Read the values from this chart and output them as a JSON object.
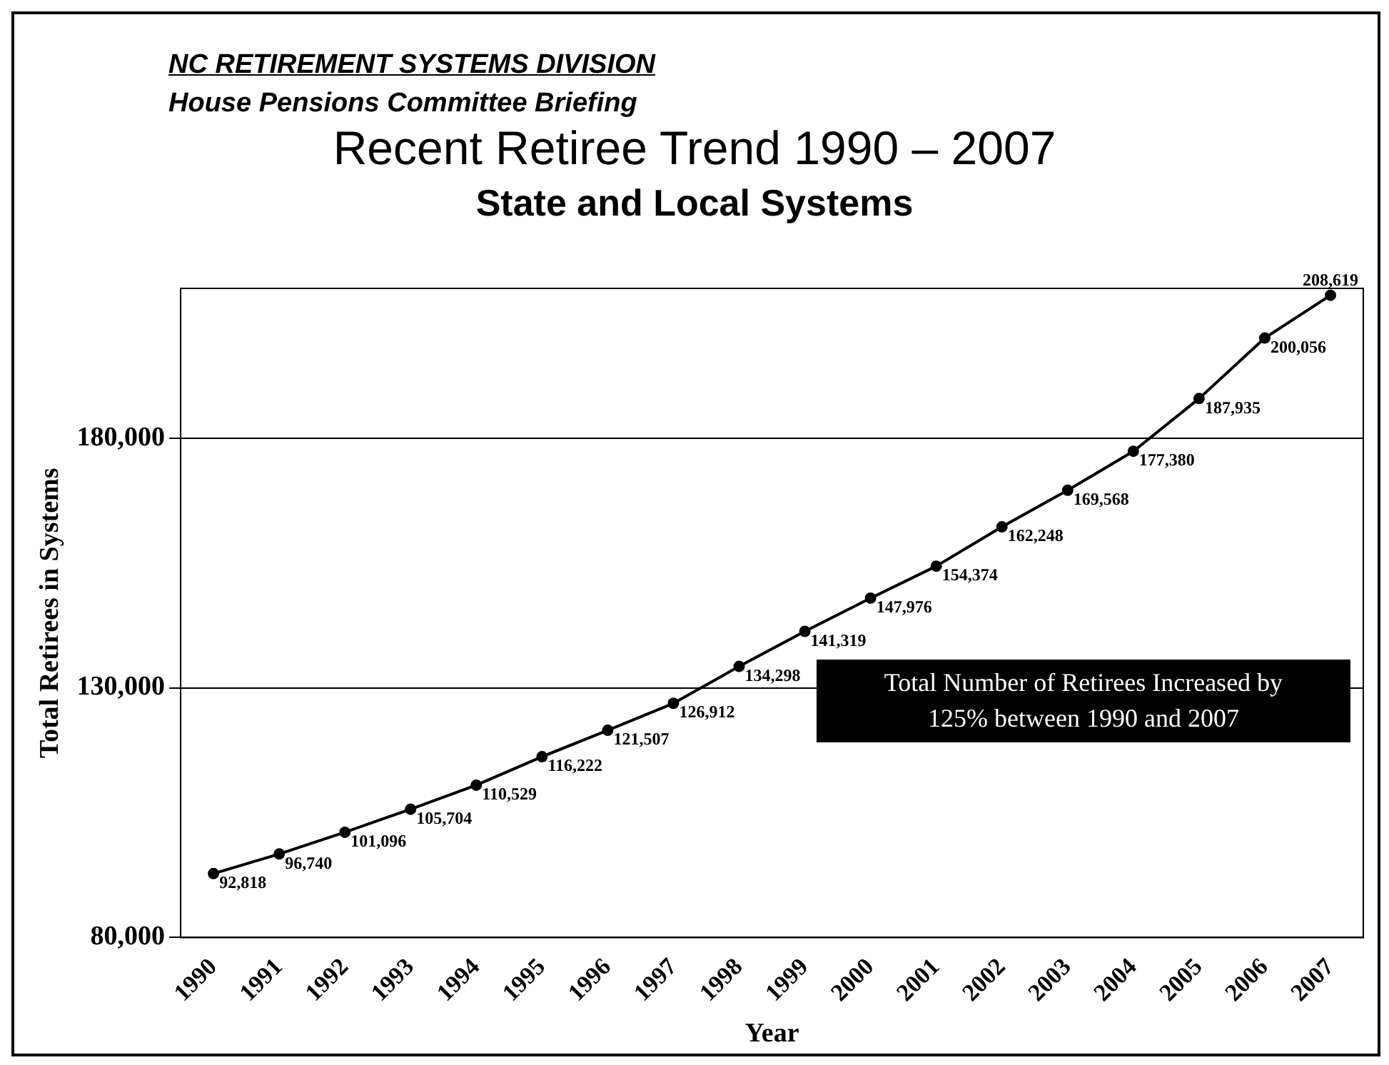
{
  "chart_data": {
    "type": "line",
    "title": "Recent Retiree Trend 1990 – 2007",
    "subtitle": "State and Local Systems",
    "xlabel": "Year",
    "ylabel": "Total Retirees in Systems",
    "annotations": [
      "NC RETIREMENT SYSTEMS DIVISION",
      "House Pensions Committee Briefing",
      "Total Number of Retirees Increased by 125% between 1990 and 2007"
    ],
    "categories": [
      "1990",
      "1991",
      "1992",
      "1993",
      "1994",
      "1995",
      "1996",
      "1997",
      "1998",
      "1999",
      "2000",
      "2001",
      "2002",
      "2003",
      "2004",
      "2005",
      "2006",
      "2007"
    ],
    "series": [
      {
        "color": "#000000",
        "values": [
          92818,
          96740,
          101096,
          105704,
          110529,
          116222,
          121507,
          126912,
          134298,
          141319,
          147976,
          154374,
          162248,
          169568,
          177380,
          187935,
          200056,
          208619
        ],
        "value_labels": [
          "92,818",
          "96,740",
          "101,096",
          "105,704",
          "110,529",
          "116,222",
          "121,507",
          "126,912",
          "134,298",
          "141,319",
          "147,976",
          "154,374",
          "162,248",
          "169,568",
          "177,380",
          "187,935",
          "200,056",
          "208,619"
        ]
      }
    ],
    "ylim": [
      80000,
      210000
    ],
    "yticks": [
      {
        "value": 80000,
        "label": "80,000"
      },
      {
        "value": 130000,
        "label": "130,000"
      },
      {
        "value": 180000,
        "label": "180,000"
      }
    ],
    "grid": "y",
    "legend": false,
    "marker": "circle",
    "line_style": "solid"
  }
}
